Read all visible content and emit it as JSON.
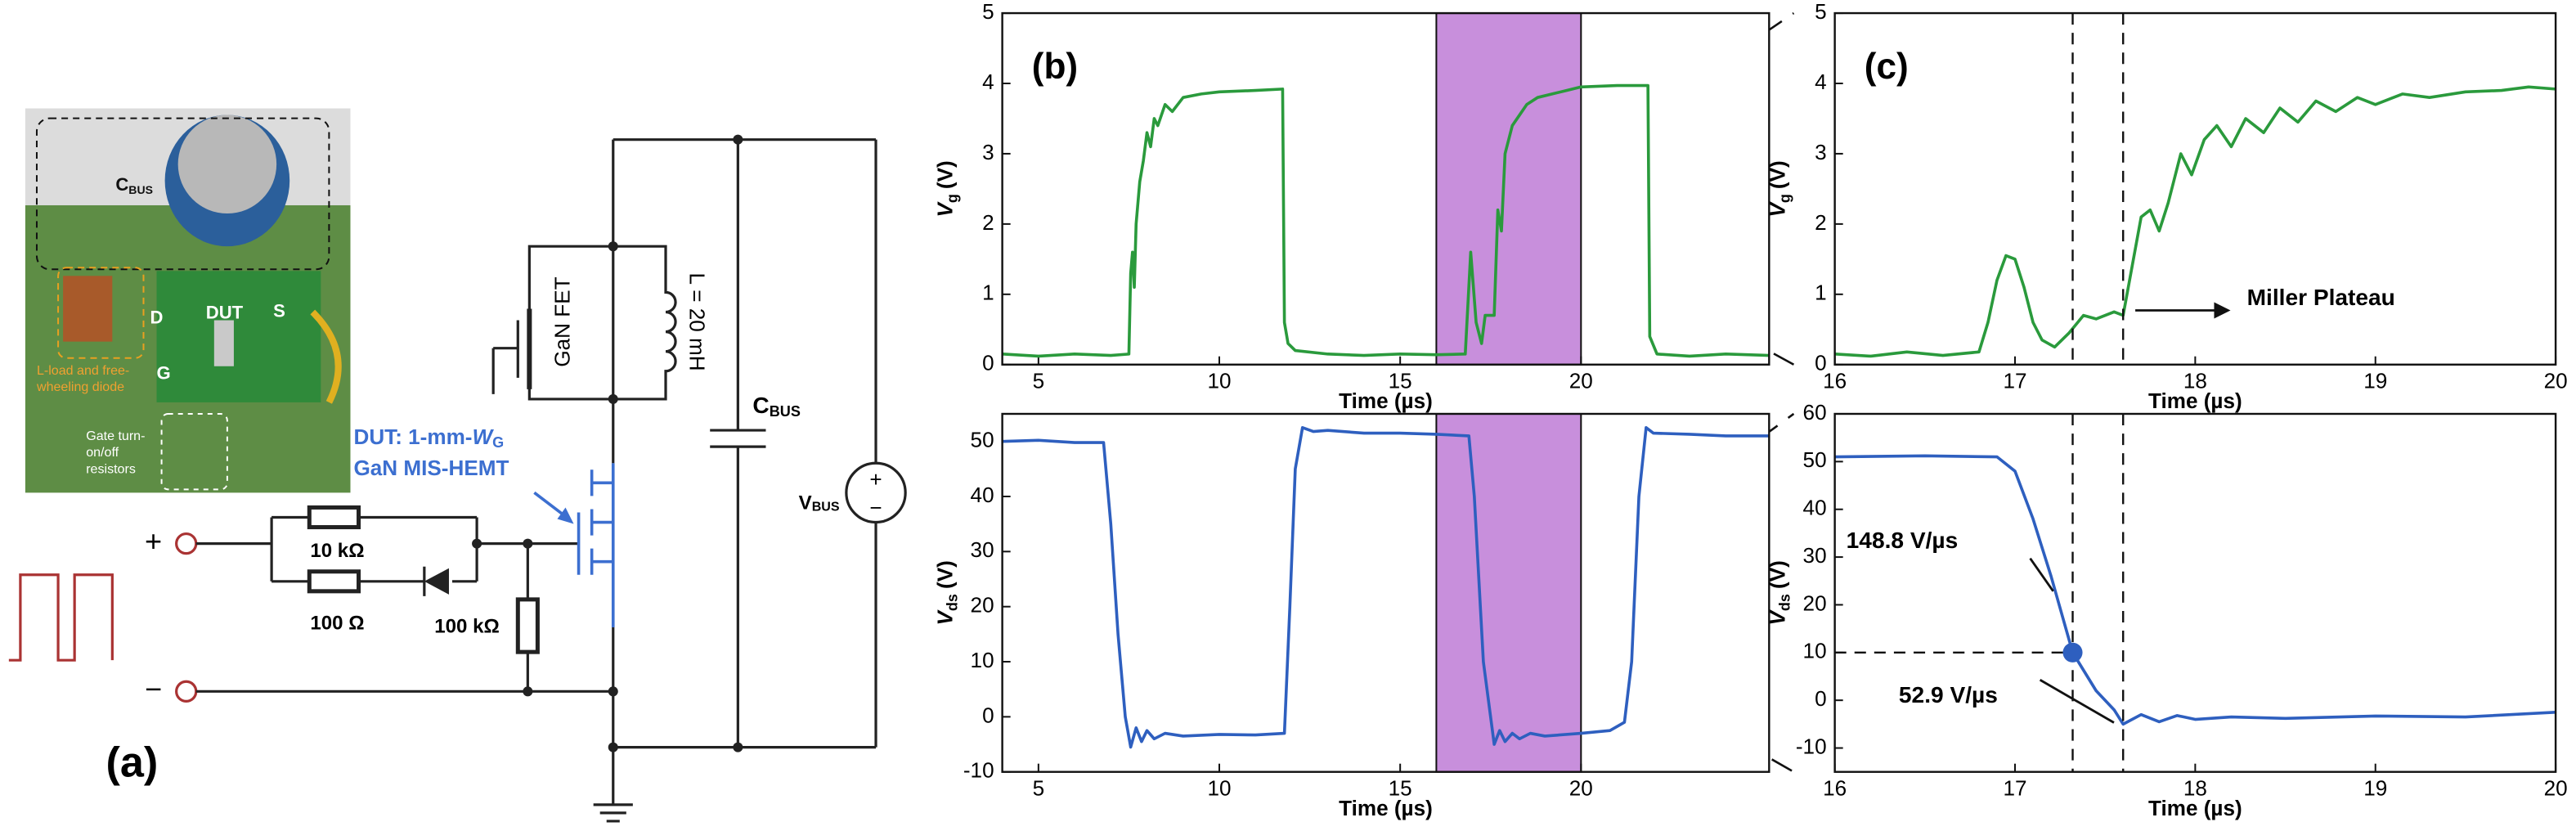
{
  "diagram": {
    "panel_label": "(a)",
    "photo": {
      "cbus": {
        "main": "C",
        "sub": "BUS"
      },
      "load_label": [
        "L-load and free-",
        "wheeling diode"
      ],
      "d": "D",
      "dut": "DUT",
      "s": "S",
      "g": "G",
      "gate_label": [
        "Gate turn-",
        "on/off",
        "resistors"
      ]
    },
    "circuit": {
      "plus": "+",
      "minus": "−",
      "r1": "10 kΩ",
      "r2": "100 Ω",
      "r3": "100 kΩ",
      "inductor": "L = 20 mH",
      "fet": "GaN FET",
      "cbus": {
        "main": "C",
        "sub": "BUS"
      },
      "vbus": {
        "main": "V",
        "sub": "BUS"
      },
      "source_signs": [
        "+",
        "−"
      ],
      "dut": {
        "prefix": "DUT: 1-mm-",
        "w": "W",
        "w_sub": "G",
        "line2": "GaN MIS-HEMT"
      }
    }
  },
  "chart_data": [
    {
      "type": "line",
      "panel": "(b)",
      "xlabel": "Time (µs)",
      "ylabel": {
        "symbol": "V",
        "subscript": "g",
        "unit": "(V)"
      },
      "x": [
        4.0,
        5,
        6,
        7,
        7.5,
        7.55,
        7.6,
        7.65,
        7.7,
        7.8,
        7.9,
        8.0,
        8.1,
        8.2,
        8.3,
        8.5,
        8.7,
        9.0,
        9.5,
        10,
        11,
        11.75,
        11.8,
        11.9,
        12.1,
        13,
        14,
        15,
        16,
        16.8,
        16.95,
        17.1,
        17.25,
        17.35,
        17.6,
        17.7,
        17.8,
        17.9,
        18.1,
        18.3,
        18.5,
        18.8,
        19.2,
        19.6,
        20,
        21,
        21.85,
        21.9,
        22.1,
        23,
        24,
        25.2
      ],
      "series": [
        {
          "color": "#2a9a3c",
          "values": [
            0.15,
            0.12,
            0.15,
            0.13,
            0.15,
            1.3,
            1.6,
            1.1,
            2.0,
            2.6,
            2.9,
            3.3,
            3.1,
            3.5,
            3.4,
            3.7,
            3.6,
            3.8,
            3.85,
            3.88,
            3.9,
            3.92,
            0.6,
            0.3,
            0.2,
            0.15,
            0.13,
            0.15,
            0.14,
            0.15,
            1.6,
            0.6,
            0.3,
            0.7,
            0.7,
            2.2,
            1.9,
            3.0,
            3.4,
            3.55,
            3.7,
            3.8,
            3.85,
            3.9,
            3.95,
            3.97,
            3.97,
            0.4,
            0.15,
            0.12,
            0.15,
            0.13
          ]
        }
      ],
      "xlim": [
        4,
        25.2
      ],
      "xticks": [
        5,
        10,
        15,
        20
      ],
      "ylim": [
        0,
        5
      ],
      "yticks": [
        0,
        1,
        2,
        3,
        4,
        5
      ],
      "highlight": {
        "range": [
          16,
          20
        ],
        "color": "#c88fdc"
      }
    },
    {
      "type": "line",
      "xlabel": "Time (µs)",
      "ylabel": {
        "symbol": "V",
        "subscript": "ds",
        "unit": "(V)"
      },
      "x": [
        4.0,
        5,
        6,
        6.8,
        7.0,
        7.2,
        7.4,
        7.55,
        7.7,
        7.85,
        8.0,
        8.2,
        8.5,
        9,
        10,
        11,
        11.8,
        11.95,
        12.1,
        12.3,
        12.6,
        13,
        14,
        15,
        16,
        16.9,
        17.05,
        17.3,
        17.6,
        17.75,
        17.9,
        18.1,
        18.3,
        18.6,
        19,
        20,
        20.8,
        21.2,
        21.4,
        21.6,
        21.8,
        22,
        23,
        24,
        25.2
      ],
      "series": [
        {
          "color": "#2e5fbf",
          "values": [
            50,
            50.2,
            49.8,
            49.8,
            35,
            15,
            0,
            -5.5,
            -2,
            -4.5,
            -2.5,
            -4,
            -3,
            -3.5,
            -3.2,
            -3.3,
            -3,
            20,
            45,
            52.5,
            51.8,
            52,
            51.5,
            51.5,
            51.3,
            51,
            40,
            10,
            -5,
            -2.5,
            -4.5,
            -3,
            -4,
            -3,
            -3.5,
            -3,
            -2.5,
            -1,
            10,
            40,
            52.5,
            51.5,
            51.3,
            51,
            51
          ]
        }
      ],
      "xlim": [
        4,
        25.2
      ],
      "xticks": [
        5,
        10,
        15,
        20
      ],
      "ylim": [
        -10,
        55
      ],
      "yticks": [
        -10,
        0,
        10,
        20,
        30,
        40,
        50
      ],
      "highlight": {
        "range": [
          16,
          20
        ],
        "color": "#c88fdc"
      }
    },
    {
      "type": "line",
      "panel": "(c)",
      "xlabel": "Time (µs)",
      "ylabel": {
        "symbol": "V",
        "subscript": "g",
        "unit": "(V)"
      },
      "x": [
        16,
        16.2,
        16.4,
        16.6,
        16.8,
        16.85,
        16.9,
        16.95,
        17.0,
        17.05,
        17.1,
        17.15,
        17.22,
        17.3,
        17.38,
        17.45,
        17.55,
        17.6,
        17.65,
        17.7,
        17.75,
        17.8,
        17.85,
        17.92,
        17.98,
        18.05,
        18.12,
        18.2,
        18.28,
        18.38,
        18.47,
        18.57,
        18.67,
        18.78,
        18.9,
        19.0,
        19.15,
        19.3,
        19.5,
        19.7,
        19.85,
        20
      ],
      "series": [
        {
          "color": "#2a9a3c",
          "values": [
            0.15,
            0.12,
            0.18,
            0.13,
            0.18,
            0.6,
            1.2,
            1.55,
            1.5,
            1.1,
            0.6,
            0.35,
            0.25,
            0.45,
            0.7,
            0.65,
            0.75,
            0.7,
            1.4,
            2.1,
            2.2,
            1.9,
            2.3,
            3.0,
            2.7,
            3.2,
            3.4,
            3.1,
            3.5,
            3.3,
            3.65,
            3.45,
            3.75,
            3.6,
            3.8,
            3.7,
            3.85,
            3.8,
            3.88,
            3.9,
            3.95,
            3.92
          ]
        }
      ],
      "xlim": [
        16,
        20
      ],
      "xticks": [
        16,
        17,
        18,
        19,
        20
      ],
      "ylim": [
        0,
        5
      ],
      "yticks": [
        0,
        1,
        2,
        3,
        4,
        5
      ],
      "vlines": [
        17.32,
        17.6
      ],
      "annotations": [
        "Miller Plateau"
      ]
    },
    {
      "type": "line",
      "xlabel": "Time (µs)",
      "ylabel": {
        "symbol": "V",
        "subscript": "ds",
        "unit": "(V)"
      },
      "x": [
        16,
        16.5,
        16.9,
        17.0,
        17.1,
        17.2,
        17.32,
        17.45,
        17.55,
        17.6,
        17.7,
        17.8,
        17.9,
        18.0,
        18.2,
        18.5,
        19,
        19.5,
        20
      ],
      "series": [
        {
          "color": "#2e5fbf",
          "values": [
            51,
            51.2,
            51,
            48,
            38,
            26,
            10,
            2,
            -2,
            -5,
            -3,
            -4.5,
            -3.2,
            -4,
            -3.5,
            -3.8,
            -3.3,
            -3.5,
            -2.5
          ]
        }
      ],
      "xlim": [
        16,
        20
      ],
      "xticks": [
        16,
        17,
        18,
        19,
        20
      ],
      "ylim": [
        -15,
        60
      ],
      "yticks": [
        -10,
        0,
        10,
        20,
        30,
        40,
        50,
        60
      ],
      "vlines": [
        17.32,
        17.6
      ],
      "point": {
        "x": 17.32,
        "y": 10
      },
      "annotations": [
        "148.8 V/µs",
        "52.9 V/µs"
      ]
    }
  ]
}
